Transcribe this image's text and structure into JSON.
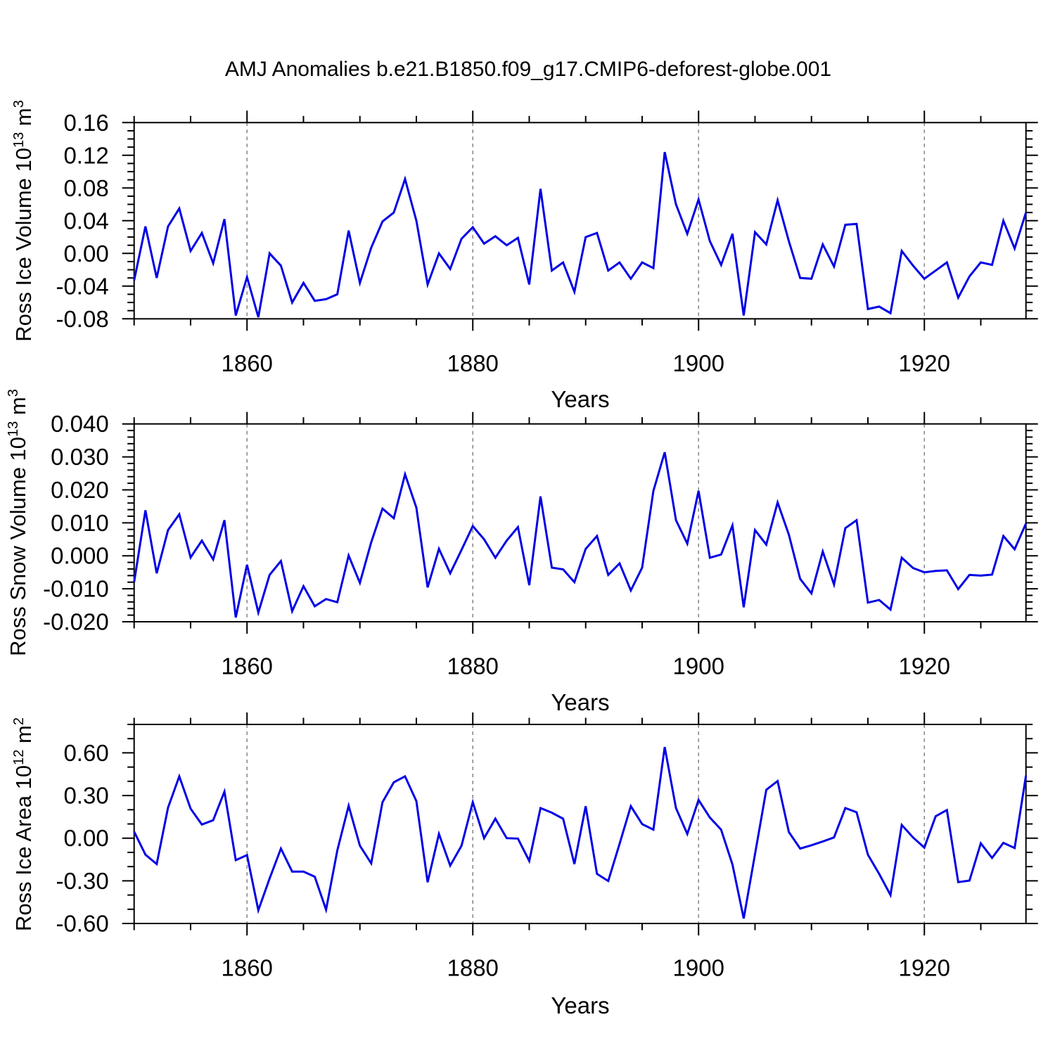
{
  "colors": {
    "background": "#ffffff",
    "line": "#0000e6",
    "grid": "#858585",
    "axis": "#000000",
    "text": "#000000"
  },
  "chart_data": {
    "type": "line",
    "title": "AMJ Anomalies b.e21.B1850.f09_g17.CMIP6-deforest-globe.001",
    "xlabel": "Years",
    "legend": "none",
    "grid": "dashed vertical lines at x major ticks",
    "xlim": [
      1850,
      1929
    ],
    "x_major_ticks": [
      1860,
      1880,
      1900,
      1920
    ],
    "x_minor_step": 5,
    "years": [
      1850,
      1851,
      1852,
      1853,
      1854,
      1855,
      1856,
      1857,
      1858,
      1859,
      1860,
      1861,
      1862,
      1863,
      1864,
      1865,
      1866,
      1867,
      1868,
      1869,
      1870,
      1871,
      1872,
      1873,
      1874,
      1875,
      1876,
      1877,
      1878,
      1879,
      1880,
      1881,
      1882,
      1883,
      1884,
      1885,
      1886,
      1887,
      1888,
      1889,
      1890,
      1891,
      1892,
      1893,
      1894,
      1895,
      1896,
      1897,
      1898,
      1899,
      1900,
      1901,
      1902,
      1903,
      1904,
      1905,
      1906,
      1907,
      1908,
      1909,
      1910,
      1911,
      1912,
      1913,
      1914,
      1915,
      1916,
      1917,
      1918,
      1919,
      1920,
      1921,
      1922,
      1923,
      1924,
      1925,
      1926,
      1927,
      1928,
      1929
    ],
    "panels": [
      {
        "id": "ross-ice-volume",
        "ylabel_prefix": "Ross Ice Volume 10",
        "ylabel_exp": "13",
        "ylabel_unit": " m",
        "ylabel_unit_exp": "3",
        "ylim": [
          -0.08,
          0.16
        ],
        "y_major_ticks": [
          0.16,
          0.12,
          0.08,
          0.04,
          0.0,
          -0.04,
          -0.08
        ],
        "ytick_labels": [
          "0.16",
          "0.12",
          "0.08",
          "0.04",
          "0.00",
          "-0.04",
          "-0.08"
        ],
        "y_major_step": 0.04,
        "y_minor_step": 0.01,
        "values": [
          -0.033,
          0.033,
          -0.03,
          0.033,
          0.055,
          0.003,
          0.025,
          -0.012,
          0.042,
          -0.076,
          -0.029,
          -0.078,
          0.0,
          -0.015,
          -0.06,
          -0.036,
          -0.058,
          -0.056,
          -0.05,
          0.028,
          -0.036,
          0.007,
          0.039,
          0.05,
          0.091,
          0.04,
          -0.038,
          0.0,
          -0.019,
          0.018,
          0.032,
          0.012,
          0.021,
          0.01,
          0.019,
          -0.038,
          0.079,
          -0.021,
          -0.011,
          -0.047,
          0.02,
          0.025,
          -0.021,
          -0.011,
          -0.031,
          -0.011,
          -0.018,
          0.124,
          0.06,
          0.024,
          0.066,
          0.015,
          -0.014,
          0.024,
          -0.076,
          0.026,
          0.011,
          0.065,
          0.015,
          -0.03,
          -0.031,
          0.011,
          -0.016,
          0.035,
          0.036,
          -0.068,
          -0.065,
          -0.073,
          0.003,
          -0.015,
          -0.031,
          -0.021,
          -0.011,
          -0.054,
          -0.028,
          -0.011,
          -0.014,
          0.04,
          0.006,
          0.05
        ]
      },
      {
        "id": "ross-snow-volume",
        "ylabel_prefix": "Ross Snow Volume 10",
        "ylabel_exp": "13",
        "ylabel_unit": " m",
        "ylabel_unit_exp": "3",
        "ylim": [
          -0.02,
          0.04
        ],
        "y_major_ticks": [
          0.04,
          0.03,
          0.02,
          0.01,
          0.0,
          -0.01,
          -0.02
        ],
        "ytick_labels": [
          "0.040",
          "0.030",
          "0.020",
          "0.010",
          "0.000",
          "-0.010",
          "-0.020"
        ],
        "y_major_step": 0.01,
        "y_minor_step": 0.002,
        "values": [
          -0.008,
          0.0138,
          -0.0053,
          0.0078,
          0.0126,
          -0.0005,
          0.0046,
          -0.0011,
          0.0108,
          -0.0187,
          -0.0027,
          -0.0172,
          -0.0058,
          -0.0016,
          -0.0168,
          -0.0092,
          -0.0153,
          -0.0131,
          -0.0141,
          0.0001,
          -0.0082,
          0.0041,
          0.0143,
          0.0114,
          0.0247,
          0.0146,
          -0.0096,
          0.0021,
          -0.0053,
          0.0018,
          0.009,
          0.005,
          -0.0006,
          0.0046,
          0.0087,
          -0.0089,
          0.018,
          -0.0036,
          -0.0041,
          -0.008,
          0.0021,
          0.006,
          -0.0058,
          -0.0023,
          -0.0105,
          -0.0036,
          0.0197,
          0.0314,
          0.0108,
          0.0037,
          0.0197,
          -0.0006,
          0.0004,
          0.0092,
          -0.0156,
          0.0078,
          0.0034,
          0.0162,
          0.0064,
          -0.007,
          -0.0114,
          0.0013,
          -0.0087,
          0.0084,
          0.0108,
          -0.0142,
          -0.0134,
          -0.0163,
          -0.0006,
          -0.0037,
          -0.005,
          -0.0046,
          -0.0044,
          -0.0101,
          -0.0058,
          -0.006,
          -0.0057,
          0.006,
          0.002,
          0.0098
        ]
      },
      {
        "id": "ross-ice-area",
        "ylabel_prefix": "Ross Ice Area 10",
        "ylabel_exp": "12",
        "ylabel_unit": " m",
        "ylabel_unit_exp": "2",
        "ylim": [
          -0.6,
          0.8
        ],
        "y_major_ticks": [
          0.6,
          0.3,
          0.0,
          -0.3,
          -0.6
        ],
        "ytick_labels": [
          "0.60",
          "0.30",
          "0.00",
          "-0.30",
          "-0.60"
        ],
        "y_major_step": 0.3,
        "y_minor_step": 0.1,
        "values": [
          0.046,
          -0.116,
          -0.182,
          0.215,
          0.435,
          0.208,
          0.096,
          0.126,
          0.327,
          -0.155,
          -0.119,
          -0.507,
          -0.284,
          -0.073,
          -0.235,
          -0.235,
          -0.271,
          -0.503,
          -0.086,
          0.228,
          -0.053,
          -0.177,
          0.253,
          0.393,
          0.435,
          0.261,
          -0.31,
          0.03,
          -0.193,
          -0.053,
          0.253,
          0.0,
          0.137,
          0.0,
          -0.003,
          -0.16,
          0.212,
          0.179,
          0.137,
          -0.182,
          0.225,
          -0.251,
          -0.301,
          -0.04,
          0.225,
          0.099,
          0.06,
          0.641,
          0.212,
          0.03,
          0.269,
          0.145,
          0.06,
          -0.185,
          -0.565,
          -0.111,
          0.34,
          0.402,
          0.043,
          -0.073,
          -0.05,
          -0.023,
          0.005,
          0.212,
          0.182,
          -0.116,
          -0.251,
          -0.4,
          0.093,
          0.005,
          -0.066,
          0.154,
          0.198,
          -0.309,
          -0.298,
          -0.036,
          -0.139,
          -0.033,
          -0.069,
          0.44
        ]
      }
    ]
  }
}
